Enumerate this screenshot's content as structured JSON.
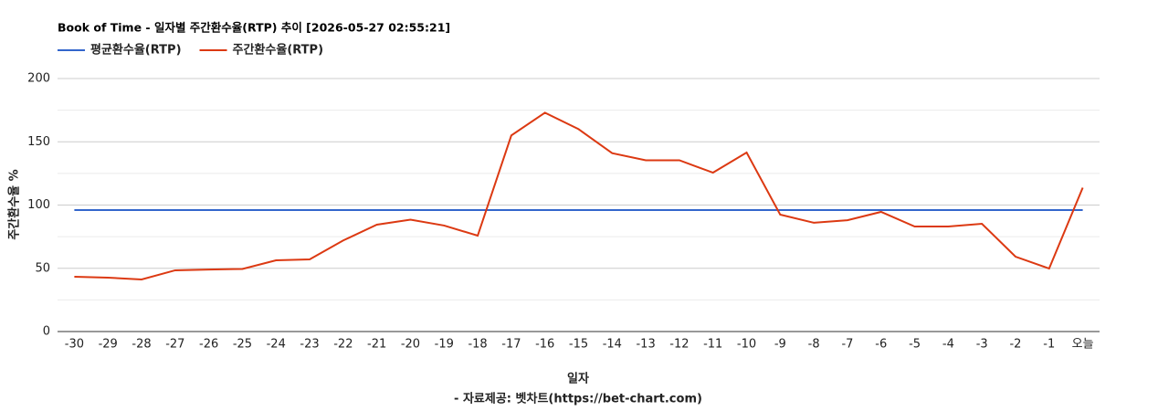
{
  "chart_data": {
    "type": "line",
    "title": "Book of Time - 일자별 주간환수율(RTP) 추이 [2026-05-27 02:55:21]",
    "x_label": "일자",
    "y_label": "주간환수율 %",
    "footer": "- 자료제공: 벳차트(https://bet-chart.com)",
    "categories": [
      "-30",
      "-29",
      "-28",
      "-27",
      "-26",
      "-25",
      "-24",
      "-23",
      "-22",
      "-21",
      "-20",
      "-19",
      "-18",
      "-17",
      "-16",
      "-15",
      "-14",
      "-13",
      "-12",
      "-11",
      "-10",
      "-9",
      "-8",
      "-7",
      "-6",
      "-5",
      "-4",
      "-3",
      "-2",
      "-1",
      "오늘"
    ],
    "series": [
      {
        "name": "평균환수율(RTP)",
        "color": "#3366cc",
        "values": [
          96,
          96,
          96,
          96,
          96,
          96,
          96,
          96,
          96,
          96,
          96,
          96,
          96,
          96,
          96,
          96,
          96,
          96,
          96,
          96,
          96,
          96,
          96,
          96,
          96,
          96,
          96,
          96,
          96,
          96,
          96
        ]
      },
      {
        "name": "주간환수율(RTP)",
        "color": "#dc3912",
        "values": [
          43.3,
          42.6,
          41.2,
          48.4,
          49,
          49.5,
          56.3,
          57,
          72,
          84.5,
          88.4,
          83.8,
          75.8,
          155,
          173,
          160,
          141,
          135.4,
          135.4,
          125.6,
          141.5,
          92.4,
          86,
          88,
          94.6,
          83,
          83,
          85.2,
          59.2,
          49.8,
          113.7
        ]
      }
    ],
    "ylim": [
      0,
      200
    ],
    "yticks": [
      0,
      50,
      100,
      150,
      200
    ],
    "minor_yticks": [
      25,
      75,
      125,
      175
    ],
    "grid": true
  }
}
